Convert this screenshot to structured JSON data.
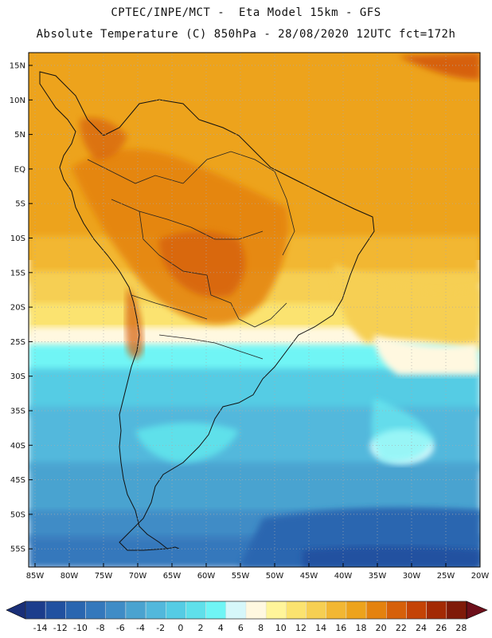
{
  "header": {
    "line1": "CPTEC/INPE/MCT -  Eta Model 15km - GFS",
    "line2": "Absolute Temperature (C) 850hPa - 28/08/2020 12UTC fct=172h"
  },
  "map": {
    "lat_labels": [
      "15N",
      "10N",
      "5N",
      "EQ",
      "5S",
      "10S",
      "15S",
      "20S",
      "25S",
      "30S",
      "35S",
      "40S",
      "45S",
      "50S",
      "55S"
    ],
    "lon_labels": [
      "85W",
      "80W",
      "75W",
      "70W",
      "65W",
      "60W",
      "55W",
      "50W",
      "45W",
      "40W",
      "35W",
      "30W",
      "25W",
      "20W"
    ]
  },
  "colorbar": {
    "labels": [
      "-14",
      "-12",
      "-10",
      "-8",
      "-6",
      "-4",
      "-2",
      "0",
      "2",
      "4",
      "6",
      "8",
      "10",
      "12",
      "14",
      "16",
      "18",
      "20",
      "22",
      "24",
      "26",
      "28"
    ],
    "colors": [
      "#1c3d8c",
      "#2151a0",
      "#2a66b0",
      "#3478bc",
      "#3f8cc6",
      "#4aa3d0",
      "#52b8dc",
      "#55cce4",
      "#5fe0ea",
      "#6ff5f5",
      "#d6f7fa",
      "#fff8e0",
      "#fff59a",
      "#fbe36f",
      "#f6cf52",
      "#f2b733",
      "#eda31c",
      "#e4820f",
      "#d6600a",
      "#c44306",
      "#a32a04",
      "#7f1a08"
    ],
    "low_color": "#1a2f78",
    "high_color": "#6d0f1a"
  }
}
